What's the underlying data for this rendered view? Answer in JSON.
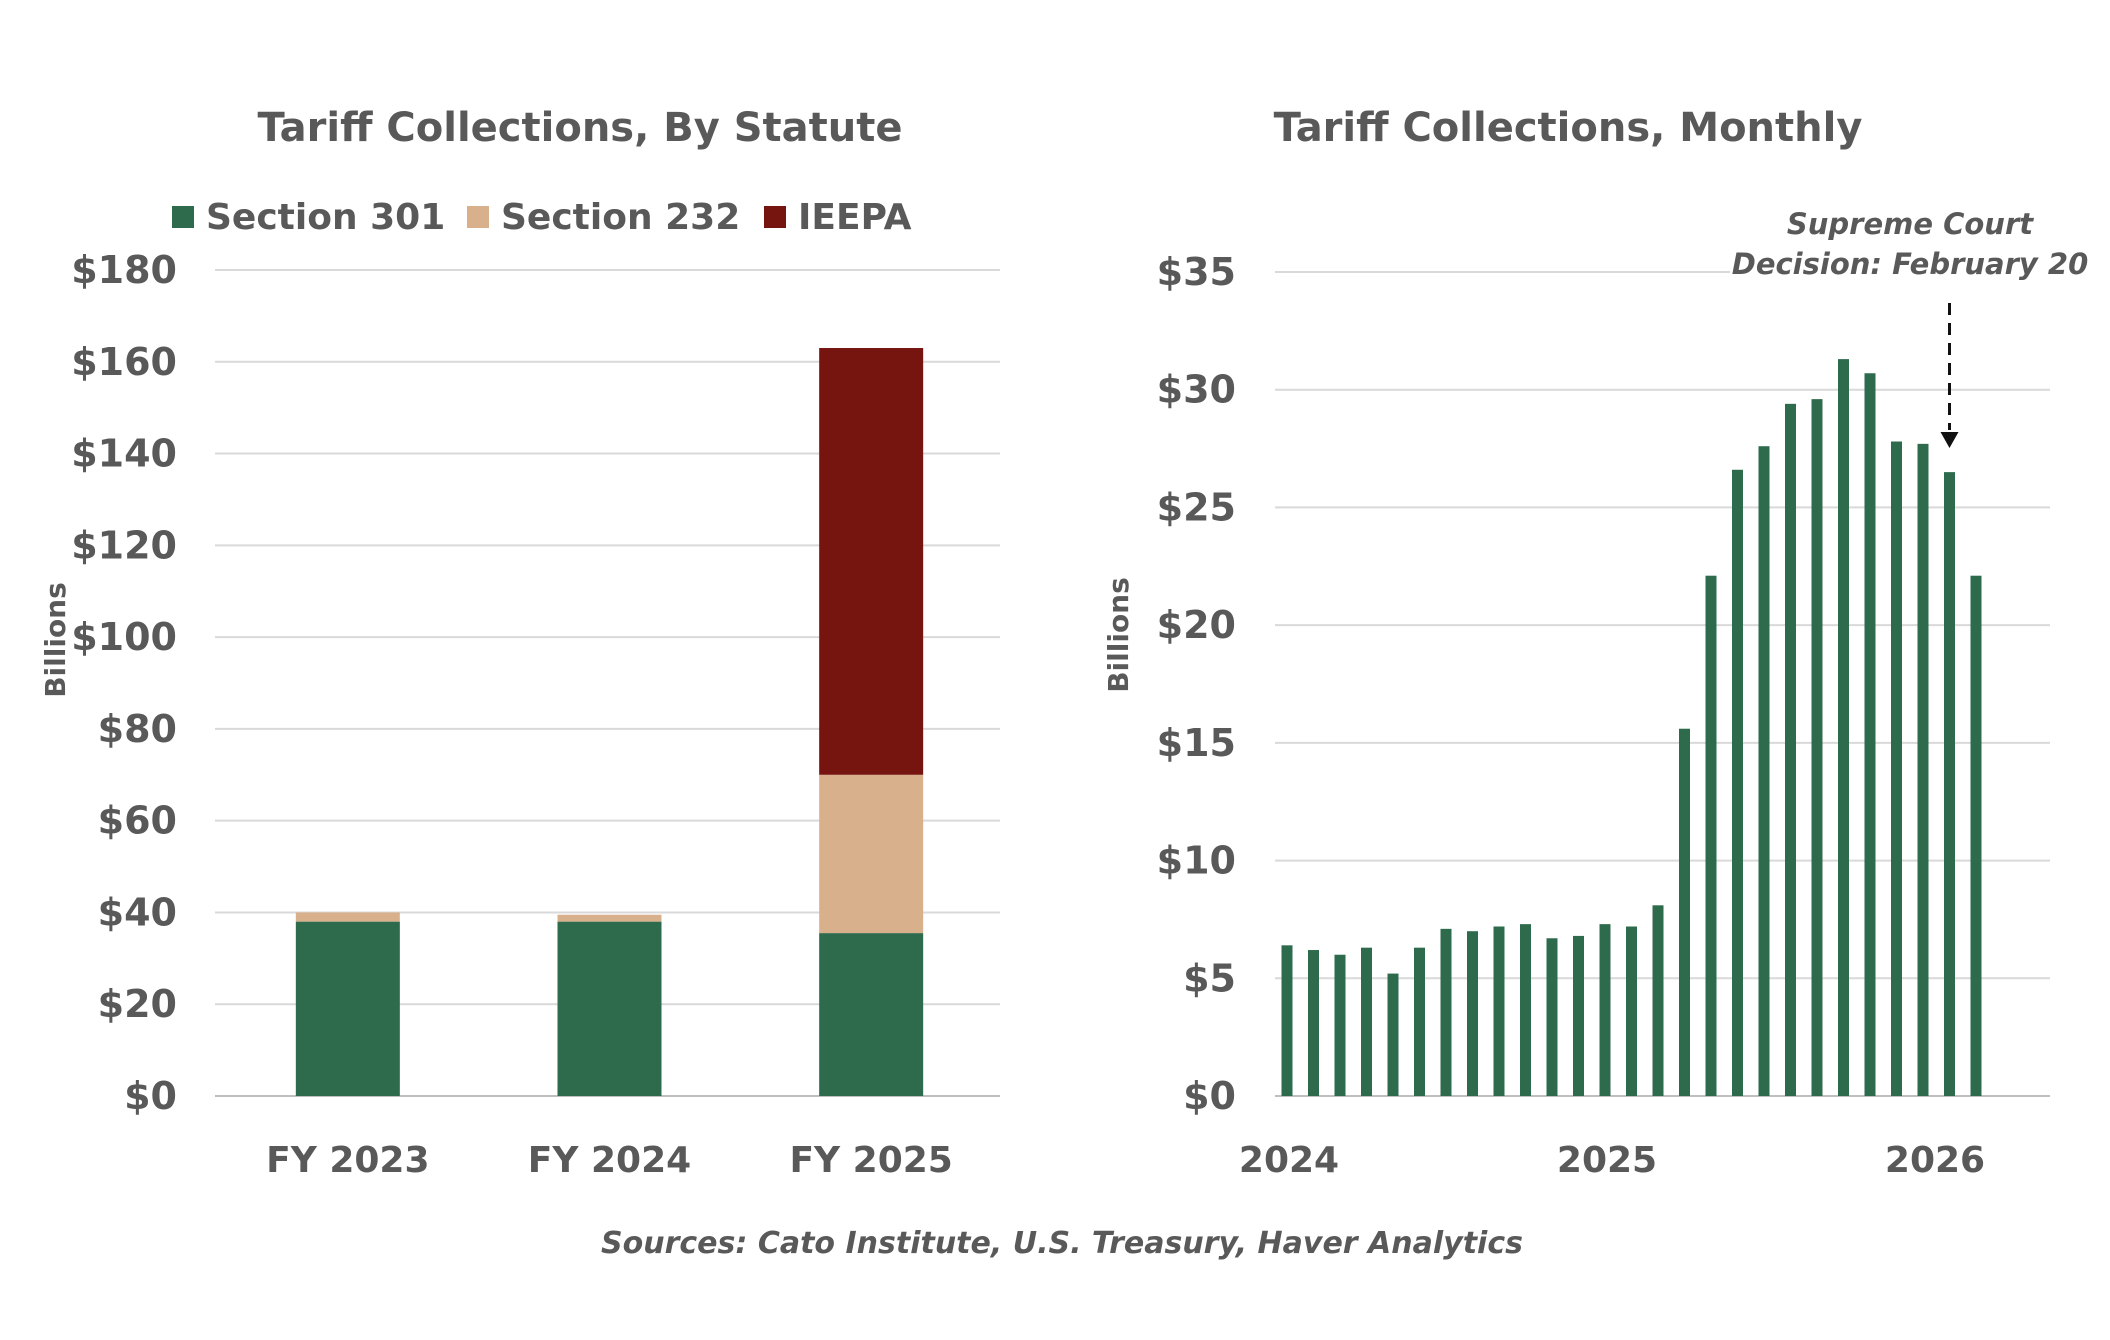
{
  "source": "Sources: Cato Institute, U.S. Treasury, Haver Analytics",
  "chart_data": [
    {
      "type": "bar",
      "stacked": true,
      "title": "Tariff Collections, By Statute",
      "ylabel": "Billions",
      "xlabel": "",
      "categories": [
        "FY 2023",
        "FY 2024",
        "FY 2025"
      ],
      "series": [
        {
          "name": "Section 301",
          "color": "#2e6b4d",
          "values": [
            38,
            38,
            35.5
          ]
        },
        {
          "name": "Section 232",
          "color": "#d9b08c",
          "values": [
            2,
            1.5,
            34.5
          ]
        },
        {
          "name": "IEEPA",
          "color": "#76150f",
          "values": [
            0,
            0,
            93
          ]
        }
      ],
      "ylim": [
        0,
        180
      ],
      "yticks": [
        0,
        20,
        40,
        60,
        80,
        100,
        120,
        140,
        160,
        180
      ],
      "ytick_labels": [
        "$0",
        "$20",
        "$40",
        "$60",
        "$80",
        "$100",
        "$120",
        "$140",
        "$160",
        "$180"
      ],
      "legend": "top",
      "grid": true
    },
    {
      "type": "bar",
      "title": "Tariff Collections, Monthly",
      "ylabel": "Billions",
      "xlabel": "",
      "x": [
        "2024-01",
        "2024-02",
        "2024-03",
        "2024-04",
        "2024-05",
        "2024-06",
        "2024-07",
        "2024-08",
        "2024-09",
        "2024-10",
        "2024-11",
        "2024-12",
        "2025-01",
        "2025-02",
        "2025-03",
        "2025-04",
        "2025-05",
        "2025-06",
        "2025-07",
        "2025-08",
        "2025-09",
        "2025-10",
        "2025-11",
        "2025-12",
        "2026-01",
        "2026-02",
        "2026-03"
      ],
      "values": [
        6.4,
        6.2,
        6.0,
        6.3,
        5.2,
        6.3,
        7.1,
        7.0,
        7.2,
        7.3,
        6.7,
        6.8,
        7.3,
        7.2,
        8.1,
        15.6,
        22.1,
        26.6,
        27.6,
        29.4,
        29.6,
        31.3,
        30.7,
        27.8,
        27.7,
        26.5,
        22.1
      ],
      "series": [
        {
          "color": "#2e6b4d"
        }
      ],
      "ylim": [
        0,
        35
      ],
      "yticks": [
        0,
        5,
        10,
        15,
        20,
        25,
        30,
        35
      ],
      "ytick_labels": [
        "$0",
        "$5",
        "$10",
        "$15",
        "$20",
        "$25",
        "$30",
        "$35"
      ],
      "xtick_labels": [
        "2024",
        "2025",
        "2026"
      ],
      "annotation": {
        "lines": [
          "Supreme Court",
          "Decision: February 20"
        ],
        "x": "2026-02",
        "style": "dashed-arrow"
      },
      "grid": true
    }
  ]
}
